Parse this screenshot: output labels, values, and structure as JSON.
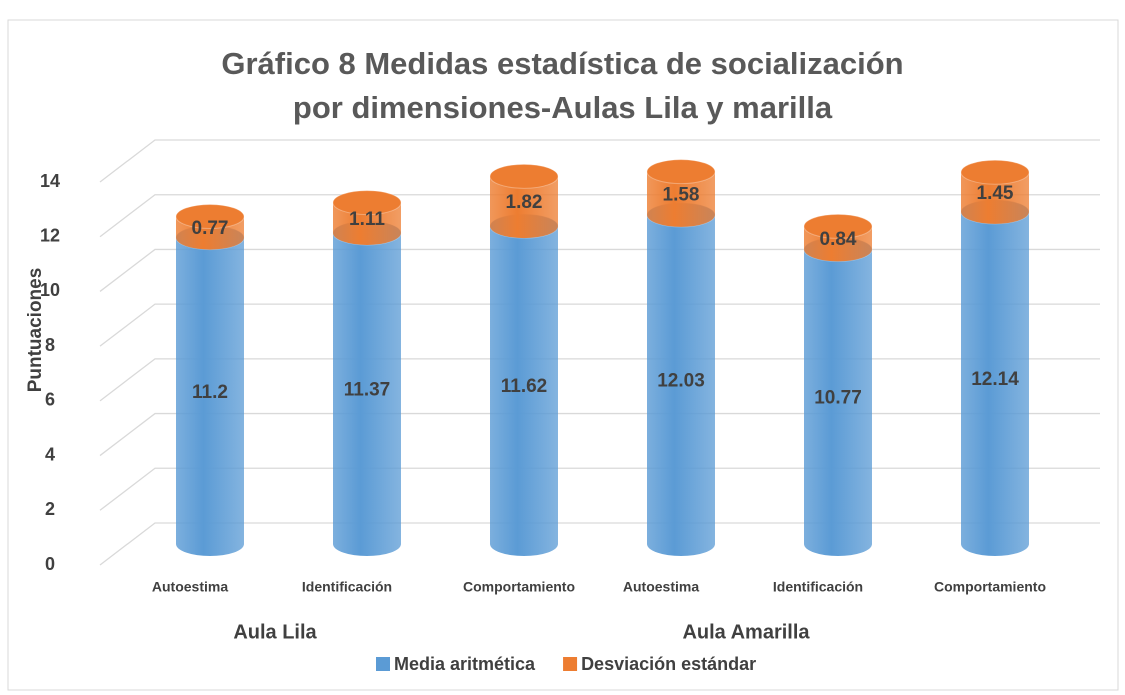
{
  "chart_data": {
    "type": "cylinder-stacked-bar",
    "title": "Gráfico 8 Medidas estadística de socialización por dimensiones-Aulas Lila y marilla",
    "y_label": "Puntuaciones",
    "categories": [
      "Autoestima",
      "Identificación",
      "Comportamiento",
      "Autoestima",
      "Identificación",
      "Comportamiento"
    ],
    "groups": [
      "Aula Lila",
      "Aula Amarilla"
    ],
    "series": [
      {
        "name": "Media aritmética",
        "color": "#5b9bd5",
        "values": [
          11.2,
          11.37,
          11.62,
          12.03,
          10.77,
          12.14
        ]
      },
      {
        "name": "Desviación estándar",
        "color": "#ed7d31",
        "values": [
          0.77,
          1.11,
          1.82,
          1.58,
          0.84,
          1.45
        ]
      }
    ],
    "ylim": [
      0,
      14
    ],
    "yticks": [
      0,
      2,
      4,
      6,
      8,
      10,
      12,
      14
    ],
    "grid": true,
    "legend": "bottom"
  }
}
